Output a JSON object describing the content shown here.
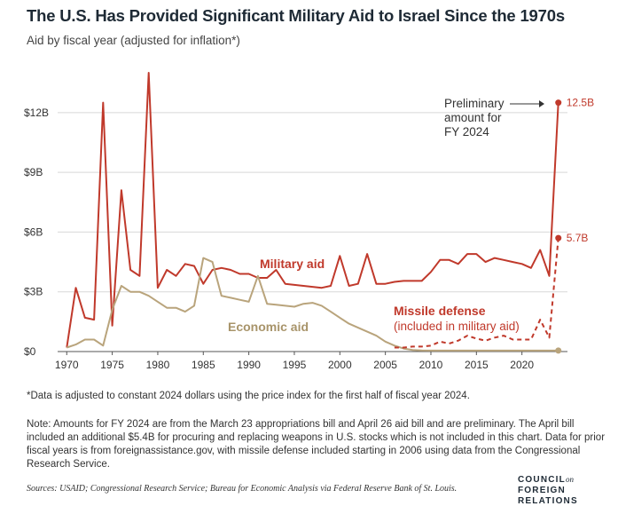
{
  "header": {
    "title": "The U.S. Has Provided Significant Military Aid to Israel Since the 1970s",
    "subtitle": "Aid by fiscal year (adjusted for inflation*)"
  },
  "chart_data": {
    "type": "line",
    "ylim": [
      0,
      14
    ],
    "xlim": [
      1969,
      2025
    ],
    "y_ticks": [
      0,
      3,
      6,
      9,
      12
    ],
    "y_tick_labels": [
      "$0",
      "$3B",
      "$6B",
      "$9B",
      "$12B"
    ],
    "x_ticks": [
      1970,
      1975,
      1980,
      1985,
      1990,
      1995,
      2000,
      2005,
      2010,
      2015,
      2020
    ],
    "x_tick_labels": [
      "1970",
      "1975",
      "1980",
      "1985",
      "1990",
      "1995",
      "2000",
      "2005",
      "2010",
      "2015",
      "2020"
    ],
    "grid": "horizontal",
    "series": [
      {
        "name": "Military aid",
        "color": "#c0392b",
        "style": "solid",
        "points": [
          [
            1970,
            0.2
          ],
          [
            1971,
            3.2
          ],
          [
            1972,
            1.7
          ],
          [
            1973,
            1.6
          ],
          [
            1974,
            12.5
          ],
          [
            1975,
            1.3
          ],
          [
            1976,
            8.1
          ],
          [
            1977,
            4.1
          ],
          [
            1978,
            3.8
          ],
          [
            1979,
            14.0
          ],
          [
            1980,
            3.2
          ],
          [
            1981,
            4.1
          ],
          [
            1982,
            3.8
          ],
          [
            1983,
            4.4
          ],
          [
            1984,
            4.3
          ],
          [
            1985,
            3.4
          ],
          [
            1986,
            4.1
          ],
          [
            1987,
            4.2
          ],
          [
            1988,
            4.1
          ],
          [
            1989,
            3.9
          ],
          [
            1990,
            3.9
          ],
          [
            1991,
            3.7
          ],
          [
            1992,
            3.7
          ],
          [
            1993,
            4.1
          ],
          [
            1994,
            3.4
          ],
          [
            1995,
            3.35
          ],
          [
            1996,
            3.3
          ],
          [
            1997,
            3.25
          ],
          [
            1998,
            3.2
          ],
          [
            1999,
            3.3
          ],
          [
            2000,
            4.8
          ],
          [
            2001,
            3.3
          ],
          [
            2002,
            3.4
          ],
          [
            2003,
            4.9
          ],
          [
            2004,
            3.4
          ],
          [
            2005,
            3.4
          ],
          [
            2006,
            3.5
          ],
          [
            2007,
            3.55
          ],
          [
            2008,
            3.55
          ],
          [
            2009,
            3.55
          ],
          [
            2010,
            4.0
          ],
          [
            2011,
            4.6
          ],
          [
            2012,
            4.6
          ],
          [
            2013,
            4.4
          ],
          [
            2014,
            4.9
          ],
          [
            2015,
            4.9
          ],
          [
            2016,
            4.5
          ],
          [
            2017,
            4.7
          ],
          [
            2018,
            4.6
          ],
          [
            2019,
            4.5
          ],
          [
            2020,
            4.4
          ],
          [
            2021,
            4.2
          ],
          [
            2022,
            5.1
          ],
          [
            2023,
            3.8
          ],
          [
            2024,
            12.5
          ]
        ]
      },
      {
        "name": "Economic aid",
        "color": "#b9a47c",
        "style": "solid",
        "points": [
          [
            1970,
            0.2
          ],
          [
            1971,
            0.35
          ],
          [
            1972,
            0.6
          ],
          [
            1973,
            0.6
          ],
          [
            1974,
            0.3
          ],
          [
            1975,
            2.1
          ],
          [
            1976,
            3.3
          ],
          [
            1977,
            3.0
          ],
          [
            1978,
            3.0
          ],
          [
            1979,
            2.8
          ],
          [
            1980,
            2.5
          ],
          [
            1981,
            2.2
          ],
          [
            1982,
            2.2
          ],
          [
            1983,
            2.0
          ],
          [
            1984,
            2.3
          ],
          [
            1985,
            4.7
          ],
          [
            1986,
            4.5
          ],
          [
            1987,
            2.8
          ],
          [
            1988,
            2.7
          ],
          [
            1989,
            2.6
          ],
          [
            1990,
            2.5
          ],
          [
            1991,
            3.8
          ],
          [
            1992,
            2.4
          ],
          [
            1993,
            2.35
          ],
          [
            1994,
            2.3
          ],
          [
            1995,
            2.25
          ],
          [
            1996,
            2.4
          ],
          [
            1997,
            2.45
          ],
          [
            1998,
            2.3
          ],
          [
            1999,
            2.0
          ],
          [
            2000,
            1.7
          ],
          [
            2001,
            1.4
          ],
          [
            2002,
            1.2
          ],
          [
            2003,
            1.0
          ],
          [
            2004,
            0.8
          ],
          [
            2005,
            0.5
          ],
          [
            2006,
            0.3
          ],
          [
            2007,
            0.15
          ],
          [
            2008,
            0.08
          ],
          [
            2009,
            0.06
          ],
          [
            2010,
            0.05
          ],
          [
            2011,
            0.05
          ],
          [
            2012,
            0.05
          ],
          [
            2013,
            0.05
          ],
          [
            2014,
            0.05
          ],
          [
            2015,
            0.05
          ],
          [
            2016,
            0.05
          ],
          [
            2017,
            0.05
          ],
          [
            2018,
            0.05
          ],
          [
            2019,
            0.05
          ],
          [
            2020,
            0.05
          ],
          [
            2021,
            0.05
          ],
          [
            2022,
            0.05
          ],
          [
            2023,
            0.05
          ],
          [
            2024,
            0.05
          ]
        ]
      },
      {
        "name": "Missile defense",
        "color": "#c0392b",
        "style": "dashed",
        "points": [
          [
            2006,
            0.2
          ],
          [
            2007,
            0.2
          ],
          [
            2008,
            0.25
          ],
          [
            2009,
            0.25
          ],
          [
            2010,
            0.3
          ],
          [
            2011,
            0.5
          ],
          [
            2012,
            0.4
          ],
          [
            2013,
            0.55
          ],
          [
            2014,
            0.8
          ],
          [
            2015,
            0.65
          ],
          [
            2016,
            0.55
          ],
          [
            2017,
            0.7
          ],
          [
            2018,
            0.8
          ],
          [
            2019,
            0.6
          ],
          [
            2020,
            0.6
          ],
          [
            2021,
            0.6
          ],
          [
            2022,
            1.6
          ],
          [
            2023,
            0.7
          ],
          [
            2024,
            5.7
          ]
        ]
      }
    ],
    "series_labels": {
      "military": "Military aid",
      "economic": "Economic aid",
      "missile_title": "Missile defense",
      "missile_sub": "(included in military aid)"
    },
    "annotations": {
      "preliminary_1": "Preliminary",
      "preliminary_2": "amount for",
      "preliminary_3": "FY 2024",
      "military_2024": "12.5B",
      "missile_2024": "5.7B"
    }
  },
  "footnotes": {
    "adjustment": "*Data is adjusted to constant 2024 dollars using the price index for the first half of fiscal year 2024.",
    "note": "Note: Amounts for FY 2024 are from the March 23 appropriations bill and April 26 aid bill and are preliminary. The April bill included an additional $5.4B for procuring and replacing weapons in U.S. stocks which is not included in this chart. Data for prior fiscal years is from foreignassistance.gov, with missile defense included starting in 2006 using data from the Congressional Research Service.",
    "sources": "Sources: USAID; Congressional Research Service; Bureau for Economic Analysis via Federal Reserve Bank of St. Louis."
  },
  "logo": {
    "line1": "COUNCIL",
    "on": "on",
    "line2": "FOREIGN",
    "line3": "RELATIONS"
  }
}
